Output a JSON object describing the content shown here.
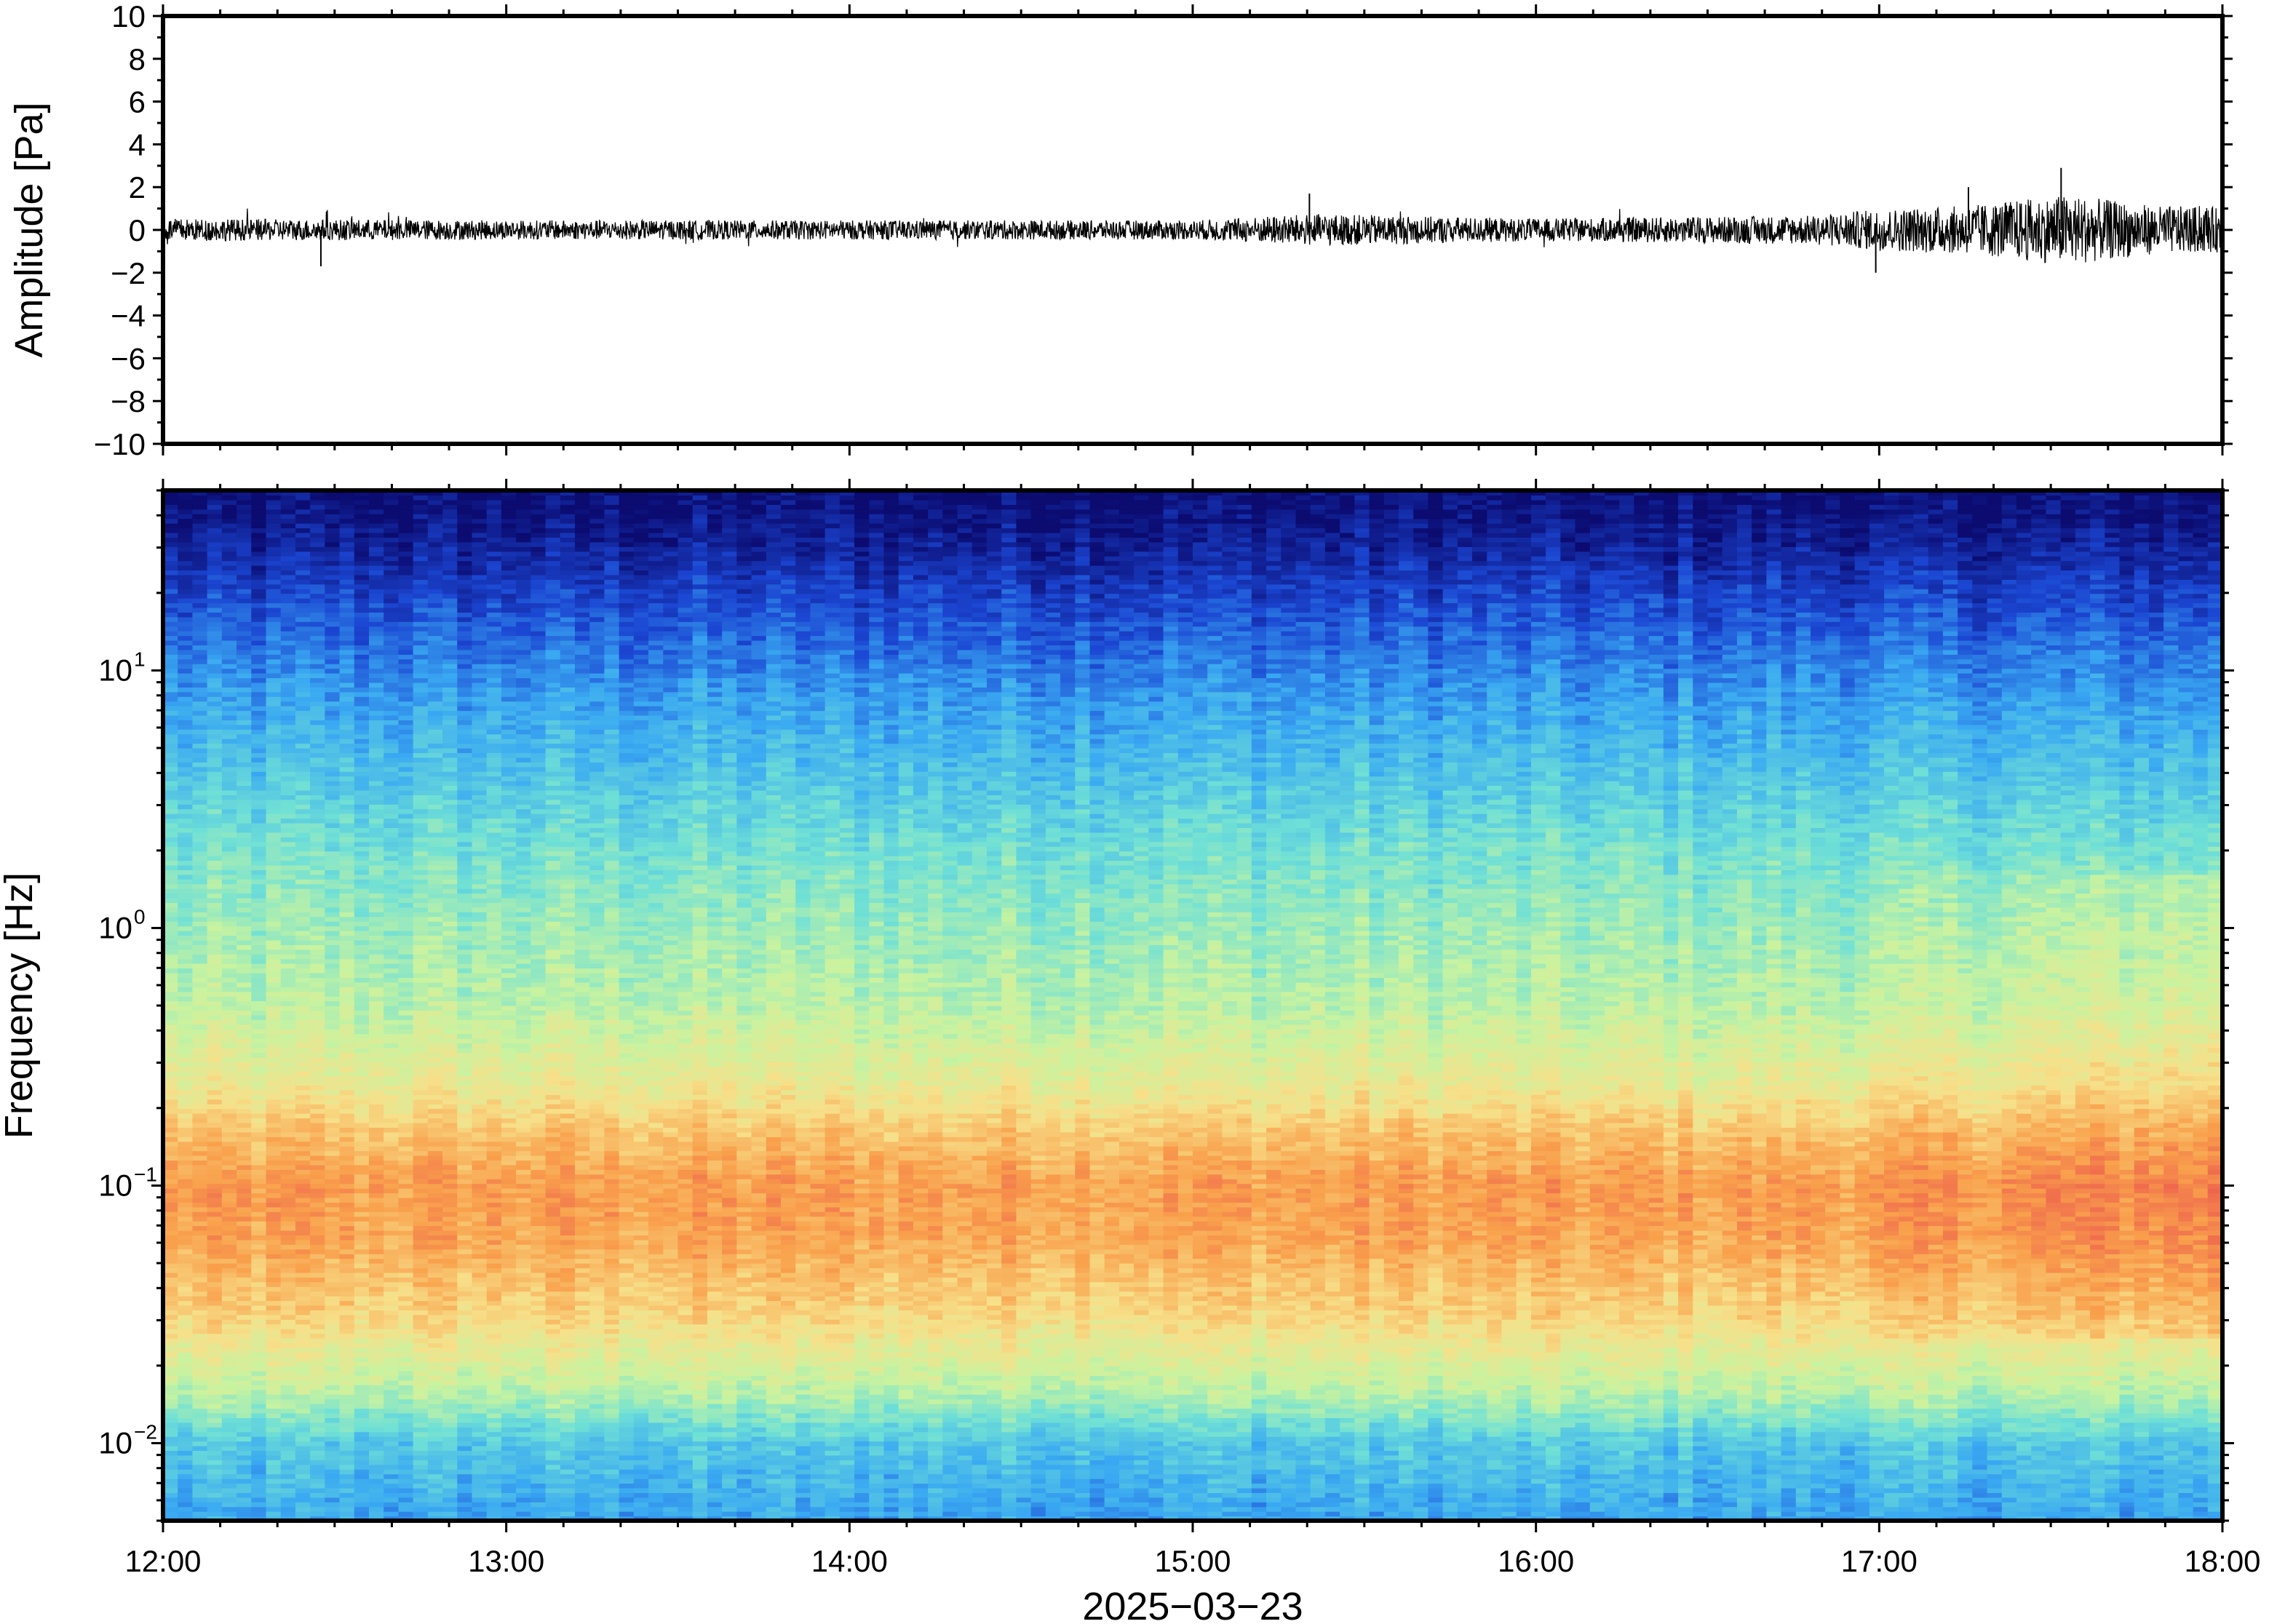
{
  "chart_data": [
    {
      "type": "line",
      "ylabel": "Amplitude [Pa]",
      "ylim": [
        -10,
        10
      ],
      "yticks": [
        "10",
        "8",
        "6",
        "4",
        "2",
        "0",
        "−2",
        "−4",
        "−6",
        "−8",
        "−10"
      ],
      "ytick_values": [
        10,
        8,
        6,
        4,
        2,
        0,
        -2,
        -4,
        -6,
        -8,
        -10
      ],
      "x_start": "12:00",
      "x_end": "18:00",
      "series": [
        {
          "x_hours": [
            12.0,
            13.0,
            14.0,
            15.0,
            15.35,
            16.0,
            16.8,
            17.0,
            17.25,
            17.55,
            17.8,
            18.0
          ],
          "envelope_pa": [
            0.7,
            0.6,
            0.6,
            0.6,
            1.0,
            0.7,
            0.9,
            1.3,
            1.5,
            2.2,
            1.5,
            1.4
          ]
        }
      ],
      "grid": false,
      "color": "#000000"
    },
    {
      "type": "heatmap",
      "ylabel": "Frequency [Hz]",
      "yscale": "log",
      "ylim": [
        0.005,
        50
      ],
      "yticks": [
        {
          "base": "10",
          "exp": "−2",
          "value": 0.01
        },
        {
          "base": "10",
          "exp": "−1",
          "value": 0.1
        },
        {
          "base": "10",
          "exp": "0",
          "value": 1
        },
        {
          "base": "10",
          "exp": "1",
          "value": 10
        }
      ],
      "xlabel": "2025−03−23",
      "xticks": [
        "12:00",
        "13:00",
        "14:00",
        "15:00",
        "16:00",
        "17:00",
        "18:00"
      ],
      "colormap": "spectral (blue = low power, red = high power)",
      "colormap_stops": [
        "#0b0b70",
        "#1b46d2",
        "#3aa9f2",
        "#6fe0d6",
        "#c8f3a0",
        "#f7e08a",
        "#f9a04c",
        "#ec5a4e"
      ],
      "grid": false
    }
  ]
}
